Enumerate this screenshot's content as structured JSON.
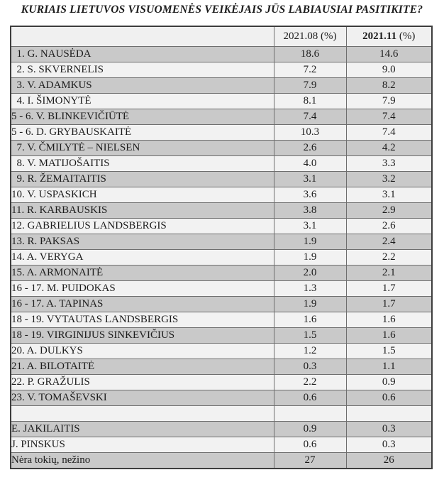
{
  "title": "KURIAIS LIETUVOS VISUOMENĖS VEIKĖJAIS JŪS LABIAUSIAI PASITIKITE?",
  "colors": {
    "page_bg": "#ffffff",
    "row_gray": "#c9c9c9",
    "row_light": "#f2f2f2",
    "header_bg": "#f0f0f0",
    "border_inner": "#6e6e6e",
    "border_outer": "#3d3d3d",
    "text": "#1c1c1c"
  },
  "table": {
    "header": {
      "name_label": "",
      "aug_label": "2021.08 (%)",
      "nov_label_bold": "2021.11",
      "nov_label_rest": " (%)"
    },
    "rows": [
      {
        "label": "  1. G. NAUSĖDA",
        "aug": "18.6",
        "nov": "14.6"
      },
      {
        "label": "  2. S. SKVERNELIS",
        "aug": "7.2",
        "nov": "9.0"
      },
      {
        "label": "  3. V. ADAMKUS",
        "aug": "7.9",
        "nov": "8.2"
      },
      {
        "label": "  4. I. ŠIMONYTĖ",
        "aug": "8.1",
        "nov": "7.9"
      },
      {
        "label": "5 - 6. V. BLINKEVIČIŪTĖ",
        "aug": "7.4",
        "nov": "7.4"
      },
      {
        "label": "5 - 6. D. GRYBAUSKAITĖ",
        "aug": "10.3",
        "nov": "7.4"
      },
      {
        "label": "  7. V. ČMILYTĖ – NIELSEN",
        "aug": "2.6",
        "nov": "4.2"
      },
      {
        "label": "  8. V. MATIJOŠAITIS",
        "aug": "4.0",
        "nov": "3.3"
      },
      {
        "label": "  9. R. ŽEMAITAITIS",
        "aug": "3.1",
        "nov": "3.2"
      },
      {
        "label": "10. V. USPASKICH",
        "aug": "3.6",
        "nov": "3.1"
      },
      {
        "label": "11. R. KARBAUSKIS",
        "aug": "3.8",
        "nov": "2.9"
      },
      {
        "label": "12. GABRIELIUS LANDSBERGIS",
        "aug": "3.1",
        "nov": "2.6"
      },
      {
        "label": "13. R. PAKSAS",
        "aug": "1.9",
        "nov": "2.4"
      },
      {
        "label": "14. A. VERYGA",
        "aug": "1.9",
        "nov": "2.2"
      },
      {
        "label": "15. A. ARMONAITĖ",
        "aug": "2.0",
        "nov": "2.1"
      },
      {
        "label": "16 - 17. M. PUIDOKAS",
        "aug": "1.3",
        "nov": "1.7"
      },
      {
        "label": "16 - 17. A. TAPINAS",
        "aug": "1.9",
        "nov": "1.7"
      },
      {
        "label": "18 - 19. VYTAUTAS LANDSBERGIS",
        "aug": "1.6",
        "nov": "1.6"
      },
      {
        "label": "18 - 19. VIRGINIJUS SINKEVIČIUS",
        "aug": "1.5",
        "nov": "1.6"
      },
      {
        "label": "20. A. DULKYS",
        "aug": "1.2",
        "nov": "1.5"
      },
      {
        "label": "21. A. BILOTAITĖ",
        "aug": "0.3",
        "nov": "1.1"
      },
      {
        "label": "22. P. GRAŽULIS",
        "aug": "2.2",
        "nov": "0.9"
      },
      {
        "label": "23. V. TOMAŠEVSKI",
        "aug": "0.6",
        "nov": "0.6"
      },
      {
        "label": "",
        "aug": "",
        "nov": ""
      },
      {
        "label": "E. JAKILAITIS",
        "aug": "0.9",
        "nov": "0.3"
      },
      {
        "label": "J. PINSKUS",
        "aug": "0.6",
        "nov": "0.3"
      },
      {
        "label": "Nėra tokių, nežino",
        "aug": "27",
        "nov": "26"
      }
    ]
  }
}
